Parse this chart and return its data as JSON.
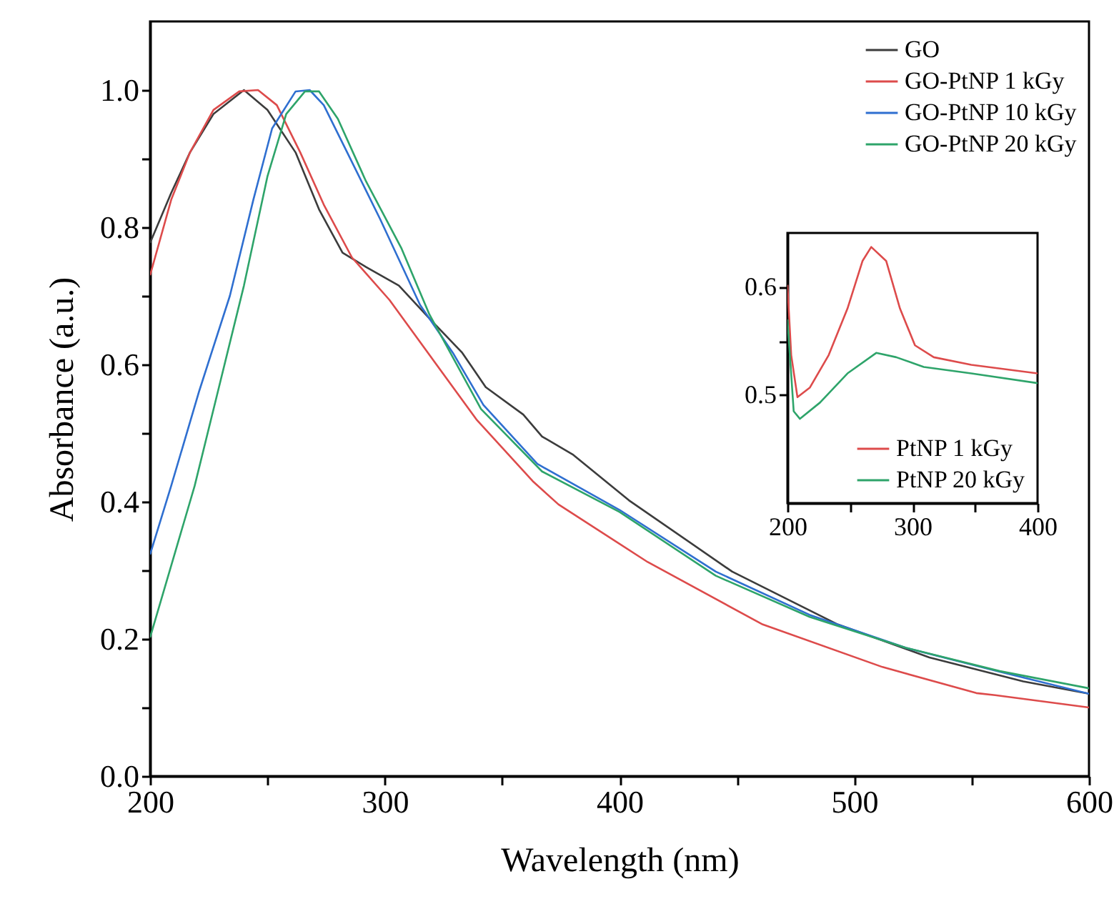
{
  "chart_data": [
    {
      "type": "line",
      "xlabel": "Wavelength (nm)",
      "ylabel": "Absorbance (a.u.)",
      "xlim": [
        200,
        600
      ],
      "ylim": [
        0,
        1.1
      ],
      "xticks": [
        200,
        {
          "value": 250,
          "label": null
        },
        300,
        {
          "value": 350,
          "label": null
        },
        400,
        {
          "value": 450,
          "label": null
        },
        500,
        {
          "value": 550,
          "label": null
        },
        600
      ],
      "yticks": [
        {
          "value": 0,
          "label": "0.0"
        },
        {
          "value": 0.1,
          "label": null
        },
        0.2,
        {
          "value": 0.3,
          "label": null
        },
        0.4,
        {
          "value": 0.5,
          "label": null
        },
        0.6,
        {
          "value": 0.7,
          "label": null
        },
        0.8,
        {
          "value": 0.9,
          "label": null
        },
        {
          "value": 1,
          "label": "1.0"
        }
      ],
      "legend": "top right",
      "series": [
        {
          "name": "GO",
          "color": "#3c3c3c",
          "x": [
            200,
            209,
            217,
            227,
            240,
            250,
            262,
            272,
            282,
            292,
            306,
            319,
            333,
            343,
            359,
            367,
            380,
            404,
            448,
            493,
            532,
            572,
            600
          ],
          "values": [
            0.777,
            0.85,
            0.909,
            0.965,
            1.0,
            0.971,
            0.909,
            0.826,
            0.763,
            0.742,
            0.715,
            0.667,
            0.617,
            0.567,
            0.527,
            0.495,
            0.469,
            0.402,
            0.298,
            0.221,
            0.173,
            0.138,
            0.12
          ]
        },
        {
          "name": "GO-PtNP 1 kGy",
          "color": "#dd4b4b",
          "x": [
            200,
            209,
            217,
            227,
            238,
            246,
            254,
            264,
            274,
            286,
            302,
            319,
            339,
            363,
            374,
            412,
            461,
            512,
            552,
            560,
            600
          ],
          "values": [
            0.73,
            0.84,
            0.909,
            0.971,
            0.998,
            1.0,
            0.978,
            0.909,
            0.833,
            0.756,
            0.694,
            0.614,
            0.52,
            0.43,
            0.396,
            0.312,
            0.221,
            0.159,
            0.121,
            0.118,
            0.1
          ]
        },
        {
          "name": "GO-PtNP 10 kGy",
          "color": "#2f6fd0",
          "x": [
            200,
            209,
            221,
            234,
            244,
            252,
            262,
            268,
            274,
            284,
            298,
            315,
            329,
            342,
            365,
            400,
            441,
            481,
            522,
            562,
            600
          ],
          "values": [
            0.323,
            0.423,
            0.562,
            0.7,
            0.84,
            0.944,
            0.998,
            1.0,
            0.978,
            0.909,
            0.812,
            0.687,
            0.617,
            0.541,
            0.455,
            0.388,
            0.298,
            0.235,
            0.187,
            0.152,
            0.12
          ]
        },
        {
          "name": "GO-PtNP 20 kGy",
          "color": "#2ea46a",
          "x": [
            200,
            219,
            229,
            240,
            250,
            258,
            266,
            272,
            280,
            292,
            307,
            319,
            341,
            367,
            400,
            441,
            481,
            522,
            562,
            600
          ],
          "values": [
            0.202,
            0.423,
            0.562,
            0.715,
            0.874,
            0.965,
            0.998,
            0.998,
            0.958,
            0.867,
            0.77,
            0.673,
            0.535,
            0.444,
            0.385,
            0.292,
            0.232,
            0.187,
            0.153,
            0.128
          ]
        }
      ]
    },
    {
      "type": "line",
      "xlim": [
        200,
        400
      ],
      "ylim": [
        0.4,
        0.65
      ],
      "xticks": [
        200,
        {
          "value": 250,
          "label": null
        },
        300,
        {
          "value": 350,
          "label": null
        },
        400
      ],
      "yticks": [
        0.5,
        {
          "value": 0.55,
          "label": null
        },
        0.6
      ],
      "legend": "bottom right",
      "series": [
        {
          "name": "PtNP 1 kGy",
          "color": "#dd4b4b",
          "x": [
            200,
            203,
            208,
            218,
            233,
            248,
            260,
            267,
            279,
            290,
            302,
            317,
            347,
            400
          ],
          "values": [
            0.602,
            0.537,
            0.498,
            0.507,
            0.537,
            0.58,
            0.624,
            0.637,
            0.624,
            0.58,
            0.546,
            0.535,
            0.528,
            0.52
          ]
        },
        {
          "name": "PtNP 20 kGy",
          "color": "#2ea46a",
          "x": [
            200,
            205,
            210,
            226,
            248,
            271,
            287,
            309,
            347,
            400
          ],
          "values": [
            0.57,
            0.485,
            0.478,
            0.493,
            0.52,
            0.539,
            0.535,
            0.526,
            0.52,
            0.511
          ]
        }
      ]
    }
  ]
}
